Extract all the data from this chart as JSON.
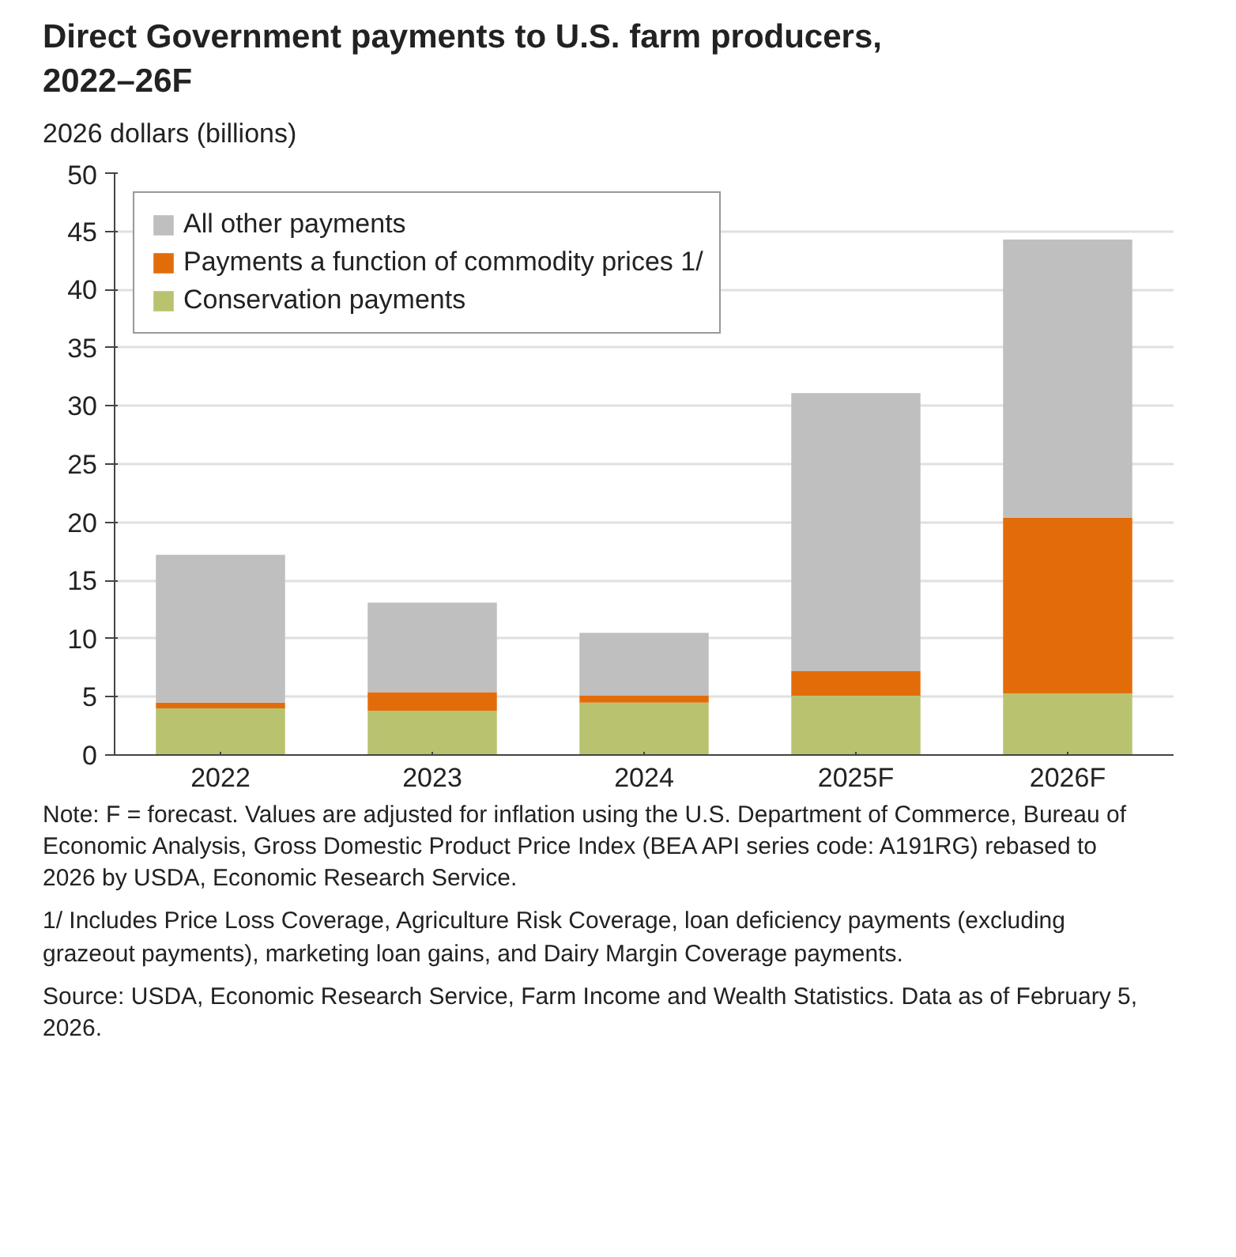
{
  "chart_data": {
    "type": "bar",
    "stacked": true,
    "title": "Direct Government payments to U.S. farm producers, 2022–26F",
    "ylabel": "2026 dollars (billions)",
    "categories": [
      "2022",
      "2023",
      "2024",
      "2025F",
      "2026F"
    ],
    "series": [
      {
        "name": "Conservation payments",
        "color": "#b9c36f",
        "values": [
          4.0,
          3.8,
          4.5,
          5.1,
          5.3
        ]
      },
      {
        "name": "Payments a function of commodity prices 1/",
        "color": "#e36c0a",
        "values": [
          0.5,
          1.6,
          0.6,
          2.1,
          15.1
        ]
      },
      {
        "name": "All other payments",
        "color": "#bfbfbf",
        "values": [
          12.7,
          7.7,
          5.4,
          23.9,
          23.9
        ]
      }
    ],
    "ylim": [
      0,
      50
    ],
    "yticks": [
      0,
      5,
      10,
      15,
      20,
      25,
      30,
      35,
      40,
      45,
      50
    ],
    "grid": "y",
    "legend": "top left",
    "annotations": [
      "Note: F = forecast. Values are adjusted for inflation using the U.S. Department of Commerce, Bureau of Economic Analysis, Gross Domestic Product Price Index (BEA API series code: A191RG) rebased to 2026 by USDA, Economic Research Service.",
      "1/ Includes Price Loss Coverage, Agriculture Risk Coverage, loan deficiency payments (excluding grazeout payments), marketing loan gains, and Dairy Margin Coverage payments.",
      "Source: USDA, Economic Research Service, Farm Income and Wealth Statistics. Data as of February 5, 2026."
    ]
  }
}
